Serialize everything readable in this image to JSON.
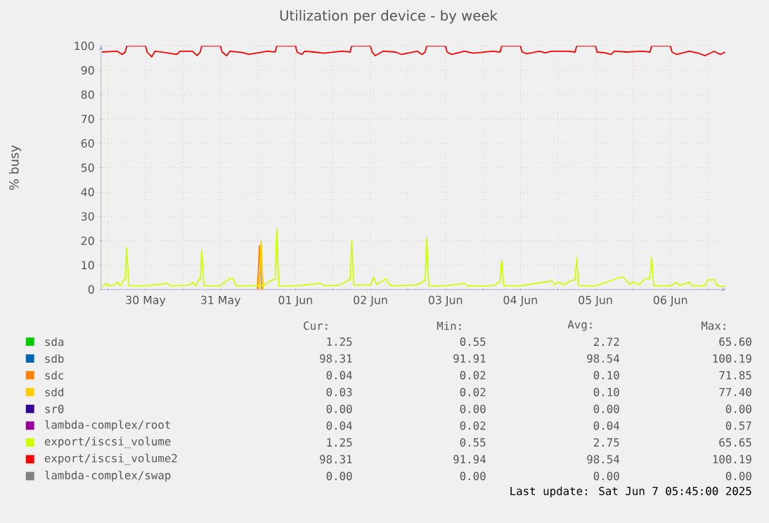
{
  "chart_data": {
    "type": "line",
    "title": "Utilization per device - by week",
    "ylabel": "% busy",
    "xlim": [
      "2025-05-29T21:45",
      "2025-06-07T05:45"
    ],
    "ylim": [
      0,
      100
    ],
    "yticks": [
      0,
      10,
      20,
      30,
      40,
      50,
      60,
      70,
      80,
      90,
      100
    ],
    "xticks": [
      {
        "value": "2025-05-30T00:00",
        "label": null
      },
      {
        "value": "2025-05-30T12:00",
        "label": "30 May"
      },
      {
        "value": "2025-05-31T00:00",
        "label": null
      },
      {
        "value": "2025-05-31T12:00",
        "label": "31 May"
      },
      {
        "value": "2025-06-01T00:00",
        "label": null
      },
      {
        "value": "2025-06-01T12:00",
        "label": "01 Jun"
      },
      {
        "value": "2025-06-02T00:00",
        "label": null
      },
      {
        "value": "2025-06-02T12:00",
        "label": "02 Jun"
      },
      {
        "value": "2025-06-03T00:00",
        "label": null
      },
      {
        "value": "2025-06-03T12:00",
        "label": "03 Jun"
      },
      {
        "value": "2025-06-04T00:00",
        "label": null
      },
      {
        "value": "2025-06-04T12:00",
        "label": "04 Jun"
      },
      {
        "value": "2025-06-05T00:00",
        "label": null
      },
      {
        "value": "2025-06-05T12:00",
        "label": "05 Jun"
      },
      {
        "value": "2025-06-06T00:00",
        "label": null
      },
      {
        "value": "2025-06-06T12:00",
        "label": "06 Jun"
      },
      {
        "value": "2025-06-07T00:00",
        "label": null
      }
    ],
    "grid": true,
    "legend": "bottom",
    "series": [
      {
        "name": "sda",
        "color": "#00cc00"
      },
      {
        "name": "sdb",
        "color": "#0066b3"
      },
      {
        "name": "sdc",
        "color": "#ff8000",
        "x": [
          "2025-05-31T23:50",
          "2025-06-01T00:30",
          "2025-06-01T01:10"
        ],
        "values": [
          0.1,
          18,
          0.1
        ]
      },
      {
        "name": "sdd",
        "color": "#ffcc00",
        "x": [
          "2025-06-01T00:20",
          "2025-06-01T01:00",
          "2025-06-01T01:40"
        ],
        "values": [
          0.1,
          20,
          0.1
        ]
      },
      {
        "name": "sr0",
        "color": "#330099"
      },
      {
        "name": "lambda-complex/root",
        "color": "#990099"
      },
      {
        "name": "export/iscsi_volume",
        "color": "#ccff00",
        "x": [
          "2025-05-29T22:00",
          "2025-05-29T23:30",
          "2025-05-30T00:00",
          "2025-05-30T02:00",
          "2025-05-30T03:00",
          "2025-05-30T04:00",
          "2025-05-30T05:00",
          "2025-05-30T05:30",
          "2025-05-30T06:00",
          "2025-05-30T06:40",
          "2025-05-30T12:00",
          "2025-05-30T19:00",
          "2025-05-30T20:00",
          "2025-05-31T02:00",
          "2025-05-31T03:00",
          "2025-05-31T04:00",
          "2025-05-31T05:00",
          "2025-05-31T05:30",
          "2025-05-31T06:00",
          "2025-05-31T06:40",
          "2025-05-31T12:00",
          "2025-05-31T15:00",
          "2025-05-31T16:00",
          "2025-05-31T17:00",
          "2025-05-31T22:00",
          "2025-06-01T02:00",
          "2025-06-01T04:00",
          "2025-06-01T05:00",
          "2025-06-01T05:30",
          "2025-06-01T06:00",
          "2025-06-01T06:40",
          "2025-06-01T12:00",
          "2025-06-01T20:00",
          "2025-06-01T21:00",
          "2025-06-02T02:00",
          "2025-06-02T04:00",
          "2025-06-02T05:00",
          "2025-06-02T05:30",
          "2025-06-02T06:00",
          "2025-06-02T06:40",
          "2025-06-02T12:00",
          "2025-06-02T13:00",
          "2025-06-02T14:00",
          "2025-06-02T17:00",
          "2025-06-02T18:00",
          "2025-06-02T19:00",
          "2025-06-03T02:00",
          "2025-06-03T04:00",
          "2025-06-03T05:00",
          "2025-06-03T05:30",
          "2025-06-03T06:00",
          "2025-06-03T06:40",
          "2025-06-03T12:00",
          "2025-06-03T18:00",
          "2025-06-03T19:00",
          "2025-06-04T02:00",
          "2025-06-04T04:00",
          "2025-06-04T05:00",
          "2025-06-04T05:30",
          "2025-06-04T06:00",
          "2025-06-04T06:40",
          "2025-06-04T12:00",
          "2025-06-04T22:00",
          "2025-06-04T23:00",
          "2025-06-05T00:00",
          "2025-06-05T02:00",
          "2025-06-05T04:00",
          "2025-06-05T05:30",
          "2025-06-05T06:00",
          "2025-06-05T06:40",
          "2025-06-05T12:00",
          "2025-06-05T20:00",
          "2025-06-05T21:00",
          "2025-06-05T23:00",
          "2025-06-06T00:00",
          "2025-06-06T02:00",
          "2025-06-06T04:00",
          "2025-06-06T05:30",
          "2025-06-06T06:00",
          "2025-06-06T06:40",
          "2025-06-06T12:00",
          "2025-06-06T14:00",
          "2025-06-06T15:00",
          "2025-06-06T18:00",
          "2025-06-06T19:00",
          "2025-06-06T23:00",
          "2025-06-07T00:00",
          "2025-06-07T02:00",
          "2025-06-07T03:00",
          "2025-06-07T05:30"
        ],
        "values": [
          1.0,
          2.5,
          1.5,
          1.8,
          3,
          1.5,
          4,
          4,
          17,
          1.5,
          1.5,
          2.5,
          1.5,
          1.8,
          3,
          1.5,
          4,
          4,
          16,
          1.5,
          1.5,
          4.5,
          4.5,
          1.5,
          1.5,
          1.8,
          3.5,
          4,
          4,
          25,
          1.5,
          1.5,
          2.5,
          1.5,
          1.8,
          3,
          4,
          4,
          20,
          1.8,
          1.8,
          5,
          2,
          4.5,
          2,
          1.5,
          1.8,
          2.5,
          3.5,
          3.5,
          21,
          1.5,
          1.5,
          2.5,
          1.5,
          1.5,
          1.8,
          3,
          3,
          12,
          1.5,
          1.5,
          3.5,
          2,
          3,
          2,
          3.5,
          4,
          13,
          1.5,
          1.5,
          5,
          5,
          2,
          3,
          2,
          4.5,
          4.5,
          13,
          1.5,
          1.5,
          3,
          1.5,
          3,
          1.5,
          1.5,
          4,
          4,
          1.5,
          1.2
        ]
      },
      {
        "name": "export/iscsi_volume2",
        "color": "#ff0000",
        "x": [
          "2025-05-29T22:00",
          "2025-05-30T03:00",
          "2025-05-30T04:30",
          "2025-05-30T05:30",
          "2025-05-30T06:00",
          "2025-05-30T12:00",
          "2025-05-30T12:30",
          "2025-05-30T14:00",
          "2025-05-30T15:00",
          "2025-05-30T18:00",
          "2025-05-30T22:00",
          "2025-05-30T23:00",
          "2025-05-31T03:00",
          "2025-05-31T04:30",
          "2025-05-31T05:30",
          "2025-05-31T06:00",
          "2025-05-31T12:00",
          "2025-05-31T12:30",
          "2025-05-31T14:00",
          "2025-05-31T15:00",
          "2025-05-31T19:00",
          "2025-05-31T21:00",
          "2025-06-01T03:00",
          "2025-06-01T05:30",
          "2025-06-01T06:00",
          "2025-06-01T12:00",
          "2025-06-01T12:30",
          "2025-06-01T14:00",
          "2025-06-01T15:00",
          "2025-06-01T18:00",
          "2025-06-01T21:00",
          "2025-06-02T03:00",
          "2025-06-02T05:30",
          "2025-06-02T06:00",
          "2025-06-02T12:00",
          "2025-06-02T12:30",
          "2025-06-02T13:30",
          "2025-06-02T16:00",
          "2025-06-02T20:00",
          "2025-06-02T22:00",
          "2025-06-03T03:00",
          "2025-06-03T04:30",
          "2025-06-03T05:30",
          "2025-06-03T06:00",
          "2025-06-03T12:00",
          "2025-06-03T12:30",
          "2025-06-03T14:00",
          "2025-06-03T18:00",
          "2025-06-03T21:00",
          "2025-06-04T03:00",
          "2025-06-04T05:30",
          "2025-06-04T06:00",
          "2025-06-04T12:00",
          "2025-06-04T12:30",
          "2025-06-04T14:00",
          "2025-06-04T18:00",
          "2025-06-04T20:00",
          "2025-06-04T22:00",
          "2025-06-05T03:00",
          "2025-06-05T05:30",
          "2025-06-05T06:00",
          "2025-06-05T12:00",
          "2025-06-05T12:30",
          "2025-06-05T15:00",
          "2025-06-05T17:00",
          "2025-06-05T18:00",
          "2025-06-05T22:00",
          "2025-06-06T03:00",
          "2025-06-06T05:30",
          "2025-06-06T06:00",
          "2025-06-06T12:00",
          "2025-06-06T12:30",
          "2025-06-06T14:00",
          "2025-06-06T18:00",
          "2025-06-06T21:00",
          "2025-06-06T23:00",
          "2025-06-07T02:00",
          "2025-06-07T04:00",
          "2025-06-07T05:30"
        ],
        "values": [
          97.5,
          97.8,
          96.5,
          97.5,
          100,
          100,
          97.5,
          95.5,
          97.8,
          97.3,
          96.5,
          97.8,
          97.8,
          96,
          97.5,
          100,
          100,
          97.5,
          96,
          97.8,
          97.3,
          96.5,
          97.8,
          97.5,
          100,
          100,
          97.5,
          96.5,
          97.8,
          97.5,
          97,
          97.8,
          97.5,
          100,
          100,
          97.5,
          96,
          97.8,
          97.5,
          96.5,
          97.8,
          96.5,
          97.5,
          100,
          100,
          97.5,
          96.5,
          97.8,
          97,
          97.8,
          97.5,
          100,
          100,
          97.5,
          96.8,
          97.8,
          97.2,
          97.8,
          97.8,
          97.5,
          100,
          100,
          97.5,
          97.2,
          96.5,
          97.8,
          97.5,
          97.8,
          97.5,
          100,
          100,
          97.5,
          96.5,
          97.8,
          97,
          96,
          97.8,
          96.5,
          97.5
        ]
      },
      {
        "name": "lambda-complex/swap",
        "color": "#808080"
      }
    ],
    "annotations": [
      "Cur:",
      "Min:",
      "Avg:",
      "Max:",
      "1.25",
      "0.55",
      "2.72",
      "65.60",
      "98.31",
      "91.91",
      "98.54",
      "100.19",
      "0.04",
      "0.02",
      "0.10",
      "71.85",
      "0.03",
      "0.02",
      "0.10",
      "77.40",
      "0.00",
      "0.00",
      "0.00",
      "0.00",
      "0.04",
      "0.02",
      "0.04",
      "0.57",
      "1.25",
      "0.55",
      "2.75",
      "65.65",
      "98.31",
      "91.94",
      "98.54",
      "100.19",
      "0.00",
      "0.00",
      "0.00",
      "0.00",
      "Last update: Sat Jun 7 05:45:00 2025"
    ]
  }
}
